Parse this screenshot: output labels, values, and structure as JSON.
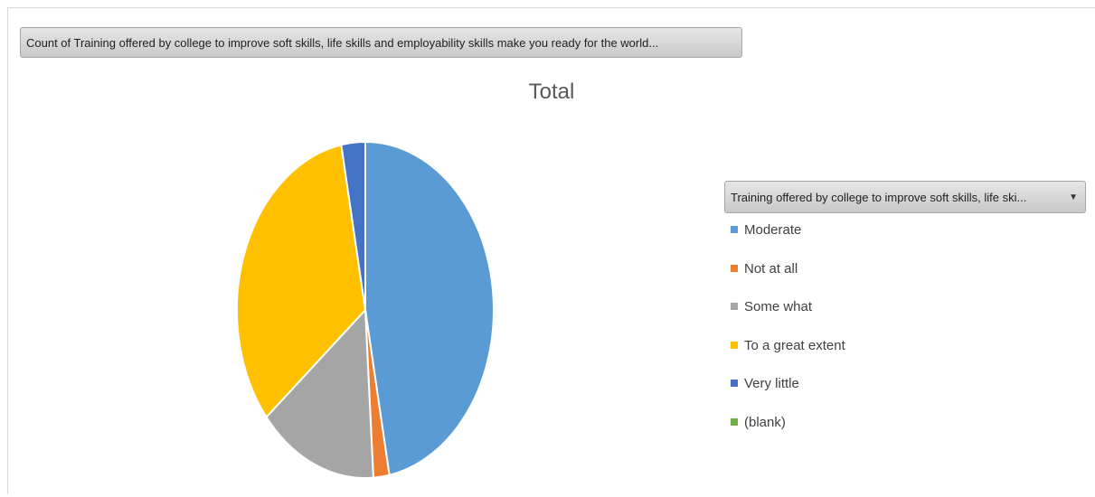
{
  "value_field_label": "Count of Training offered by college to improve soft skills, life skills and employability skills  make you ready for the world...",
  "legend_field_label": "Training offered by college to improve soft skills, life ski...",
  "legend_dropdown_icon": "dropdown-triangle-icon",
  "chart_data": {
    "type": "pie",
    "title": "Total",
    "legend_position": "right",
    "categories": [
      "Moderate",
      "Not at all",
      "Some what",
      "To a great extent",
      "Very little",
      "(blank)"
    ],
    "values": [
      47,
      2,
      15,
      33,
      3,
      0
    ],
    "colors": [
      "#5b9bd5",
      "#ed7d31",
      "#a5a5a5",
      "#ffc000",
      "#4472c4",
      "#70ad47"
    ]
  }
}
